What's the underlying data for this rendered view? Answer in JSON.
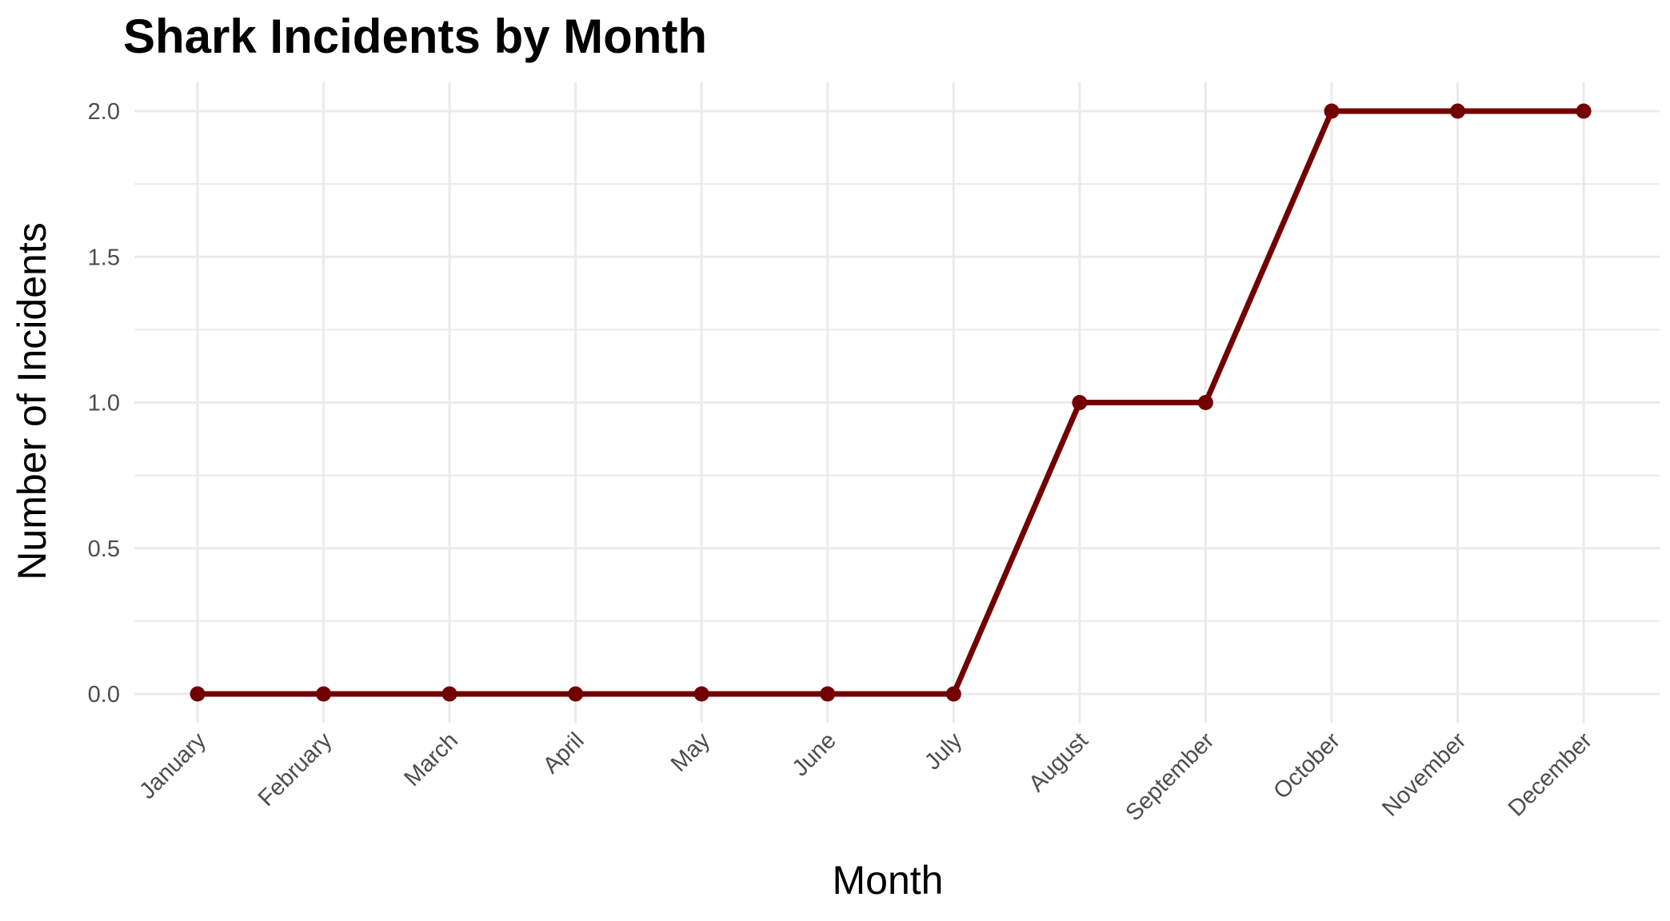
{
  "chart_data": {
    "type": "line",
    "title": "Shark Incidents by Month",
    "xlabel": "Month",
    "ylabel": "Number of Incidents",
    "categories": [
      "January",
      "February",
      "March",
      "April",
      "May",
      "June",
      "July",
      "August",
      "September",
      "October",
      "November",
      "December"
    ],
    "series": [
      {
        "values": [
          0,
          0,
          0,
          0,
          0,
          0,
          0,
          1,
          1,
          2,
          2,
          2
        ],
        "color": "#730000"
      }
    ],
    "ylim": [
      -0.1,
      2.1
    ],
    "yticks": [
      0.0,
      0.5,
      1.0,
      1.5,
      2.0
    ],
    "ytick_labels": [
      "0.0",
      "0.5",
      "1.0",
      "1.5",
      "2.0"
    ],
    "grid": true,
    "legend": "none",
    "colors": {
      "line": "#730000",
      "grid": "#ebebeb",
      "tick_text": "#4d4d4d",
      "background": "#ffffff"
    }
  }
}
